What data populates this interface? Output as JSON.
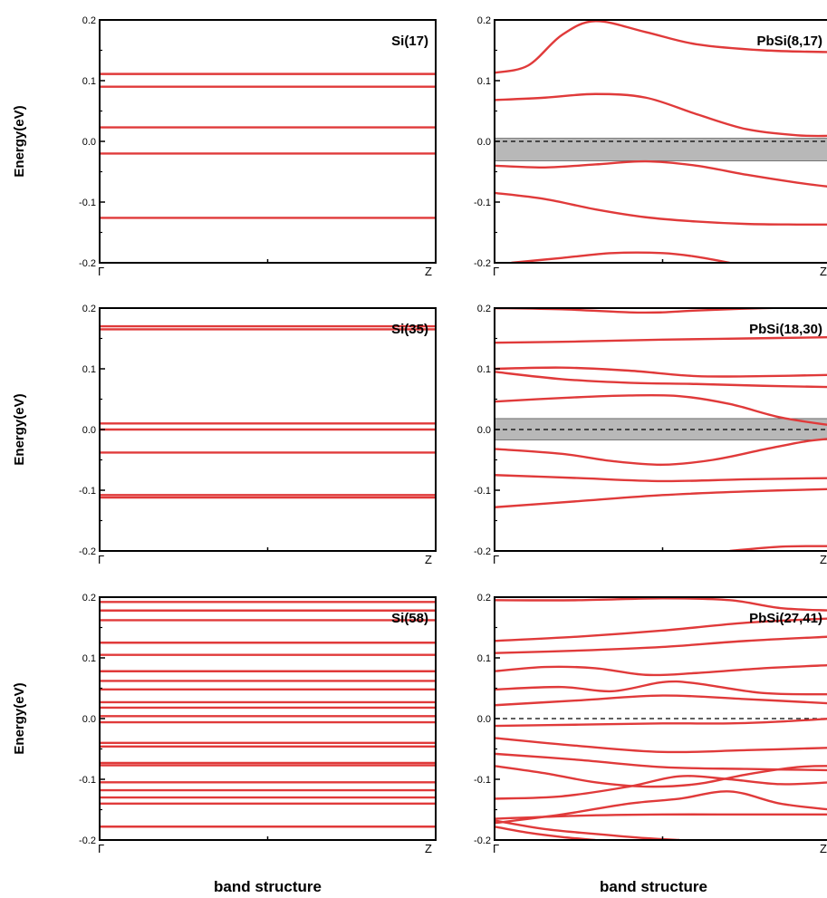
{
  "chart_data": [
    {
      "type": "line",
      "panel_label": "Si(17)",
      "ylabel": "Energy(eV)",
      "xlabel": "",
      "kpoint_labels": [
        "Γ",
        "Z"
      ],
      "xlim": [
        0,
        1
      ],
      "ylim": [
        -0.2,
        0.2
      ],
      "yticks": [
        "0.2",
        "0.1",
        "0.0",
        "-0.1",
        "-0.2"
      ],
      "fermi_dashed": false,
      "series": [
        {
          "x": [
            0,
            1
          ],
          "y": [
            0.111,
            0.111
          ]
        },
        {
          "x": [
            0,
            1
          ],
          "y": [
            0.09,
            0.09
          ]
        },
        {
          "x": [
            0,
            1
          ],
          "y": [
            0.023,
            0.023
          ]
        },
        {
          "x": [
            0,
            1
          ],
          "y": [
            -0.02,
            -0.02
          ]
        },
        {
          "x": [
            0,
            1
          ],
          "y": [
            -0.126,
            -0.126
          ]
        }
      ]
    },
    {
      "type": "line",
      "panel_label": "PbSi(8,17)",
      "ylabel": "",
      "xlabel": "",
      "kpoint_labels": [
        "Γ",
        "Z"
      ],
      "xlim": [
        0,
        1
      ],
      "ylim": [
        -0.2,
        0.2
      ],
      "yticks": [
        "0.2",
        "0.1",
        "0.0",
        "-0.1",
        "-0.2"
      ],
      "fermi_dashed": true,
      "gap_band": [
        -0.032,
        0.005
      ],
      "series": [
        {
          "x": [
            0,
            0.1,
            0.2,
            0.3,
            0.45,
            0.6,
            0.8,
            1.0
          ],
          "y": [
            0.113,
            0.125,
            0.175,
            0.198,
            0.18,
            0.16,
            0.15,
            0.147
          ]
        },
        {
          "x": [
            0,
            0.15,
            0.3,
            0.45,
            0.6,
            0.75,
            0.9,
            1.0
          ],
          "y": [
            0.068,
            0.072,
            0.078,
            0.072,
            0.045,
            0.02,
            0.01,
            0.009
          ]
        },
        {
          "x": [
            0,
            0.15,
            0.3,
            0.45,
            0.6,
            0.75,
            0.9,
            1.0
          ],
          "y": [
            -0.04,
            -0.043,
            -0.038,
            -0.033,
            -0.04,
            -0.055,
            -0.068,
            -0.075
          ]
        },
        {
          "x": [
            0,
            0.15,
            0.3,
            0.45,
            0.6,
            0.75,
            0.9,
            1.0
          ],
          "y": [
            -0.085,
            -0.095,
            -0.112,
            -0.125,
            -0.132,
            -0.136,
            -0.137,
            -0.137
          ]
        },
        {
          "x": [
            0.05,
            0.2,
            0.35,
            0.5,
            0.6,
            0.7
          ],
          "y": [
            -0.2,
            -0.192,
            -0.184,
            -0.184,
            -0.19,
            -0.2
          ]
        }
      ]
    },
    {
      "type": "line",
      "panel_label": "Si(35)",
      "ylabel": "Energy(eV)",
      "xlabel": "",
      "kpoint_labels": [
        "Γ",
        "Z"
      ],
      "xlim": [
        0,
        1
      ],
      "ylim": [
        -0.2,
        0.2
      ],
      "yticks": [
        "0.2",
        "0.1",
        "0.0",
        "-0.1",
        "-0.2"
      ],
      "fermi_dashed": false,
      "series": [
        {
          "x": [
            0,
            1
          ],
          "y": [
            0.17,
            0.17
          ]
        },
        {
          "x": [
            0,
            1
          ],
          "y": [
            0.165,
            0.165
          ]
        },
        {
          "x": [
            0,
            1
          ],
          "y": [
            0.01,
            0.01
          ]
        },
        {
          "x": [
            0,
            1
          ],
          "y": [
            0.0,
            0.0
          ]
        },
        {
          "x": [
            0,
            1
          ],
          "y": [
            -0.038,
            -0.038
          ]
        },
        {
          "x": [
            0,
            1
          ],
          "y": [
            -0.108,
            -0.108
          ]
        },
        {
          "x": [
            0,
            1
          ],
          "y": [
            -0.112,
            -0.112
          ]
        }
      ]
    },
    {
      "type": "line",
      "panel_label": "PbSi(18,30)",
      "ylabel": "",
      "xlabel": "",
      "kpoint_labels": [
        "Γ",
        "Z"
      ],
      "xlim": [
        0,
        1
      ],
      "ylim": [
        -0.2,
        0.2
      ],
      "yticks": [
        "0.2",
        "0.1",
        "0.0",
        "-0.1",
        "-0.2"
      ],
      "fermi_dashed": true,
      "gap_band": [
        -0.017,
        0.018
      ],
      "series": [
        {
          "x": [
            0,
            0.2,
            0.4,
            0.5,
            0.6,
            0.8,
            1.0
          ],
          "y": [
            0.2,
            0.198,
            0.193,
            0.193,
            0.196,
            0.2,
            0.202
          ]
        },
        {
          "x": [
            0,
            0.25,
            0.5,
            0.75,
            1.0
          ],
          "y": [
            0.143,
            0.145,
            0.148,
            0.15,
            0.152
          ]
        },
        {
          "x": [
            0,
            0.2,
            0.4,
            0.6,
            0.8,
            1.0
          ],
          "y": [
            0.1,
            0.102,
            0.097,
            0.088,
            0.088,
            0.09
          ]
        },
        {
          "x": [
            0,
            0.2,
            0.4,
            0.6,
            0.8,
            1.0
          ],
          "y": [
            0.095,
            0.083,
            0.077,
            0.075,
            0.072,
            0.07
          ]
        },
        {
          "x": [
            0,
            0.2,
            0.4,
            0.55,
            0.7,
            0.85,
            1.0
          ],
          "y": [
            0.046,
            0.052,
            0.056,
            0.055,
            0.042,
            0.02,
            0.007
          ]
        },
        {
          "x": [
            0,
            0.2,
            0.35,
            0.5,
            0.65,
            0.8,
            0.92,
            1.0
          ],
          "y": [
            -0.032,
            -0.04,
            -0.052,
            -0.058,
            -0.05,
            -0.033,
            -0.02,
            -0.015
          ]
        },
        {
          "x": [
            0,
            0.25,
            0.5,
            0.75,
            1.0
          ],
          "y": [
            -0.075,
            -0.08,
            -0.085,
            -0.082,
            -0.08
          ]
        },
        {
          "x": [
            0,
            0.25,
            0.5,
            0.75,
            1.0
          ],
          "y": [
            -0.128,
            -0.118,
            -0.108,
            -0.102,
            -0.098
          ]
        },
        {
          "x": [
            0.7,
            0.85,
            1.0
          ],
          "y": [
            -0.2,
            -0.193,
            -0.192
          ]
        }
      ]
    },
    {
      "type": "line",
      "panel_label": "Si(58)",
      "ylabel": "Energy(eV)",
      "xlabel": "band structure",
      "kpoint_labels": [
        "Γ",
        "Z"
      ],
      "xlim": [
        0,
        1
      ],
      "ylim": [
        -0.2,
        0.2
      ],
      "yticks": [
        "0.2",
        "0.1",
        "0.0",
        "-0.1",
        "-0.2"
      ],
      "fermi_dashed": false,
      "series": [
        {
          "x": [
            0,
            1
          ],
          "y": [
            0.192,
            0.192
          ]
        },
        {
          "x": [
            0,
            1
          ],
          "y": [
            0.178,
            0.178
          ]
        },
        {
          "x": [
            0,
            1
          ],
          "y": [
            0.162,
            0.162
          ]
        },
        {
          "x": [
            0,
            1
          ],
          "y": [
            0.125,
            0.125
          ]
        },
        {
          "x": [
            0,
            1
          ],
          "y": [
            0.105,
            0.105
          ]
        },
        {
          "x": [
            0,
            1
          ],
          "y": [
            0.078,
            0.078
          ]
        },
        {
          "x": [
            0,
            1
          ],
          "y": [
            0.062,
            0.062
          ]
        },
        {
          "x": [
            0,
            1
          ],
          "y": [
            0.048,
            0.048
          ]
        },
        {
          "x": [
            0,
            1
          ],
          "y": [
            0.027,
            0.027
          ]
        },
        {
          "x": [
            0,
            1
          ],
          "y": [
            0.018,
            0.018
          ]
        },
        {
          "x": [
            0,
            1
          ],
          "y": [
            0.004,
            0.004
          ]
        },
        {
          "x": [
            0,
            1
          ],
          "y": [
            -0.006,
            -0.006
          ]
        },
        {
          "x": [
            0,
            1
          ],
          "y": [
            -0.04,
            -0.04
          ]
        },
        {
          "x": [
            0,
            1
          ],
          "y": [
            -0.046,
            -0.046
          ]
        },
        {
          "x": [
            0,
            1
          ],
          "y": [
            -0.073,
            -0.073
          ]
        },
        {
          "x": [
            0,
            1
          ],
          "y": [
            -0.077,
            -0.077
          ]
        },
        {
          "x": [
            0,
            1
          ],
          "y": [
            -0.105,
            -0.105
          ]
        },
        {
          "x": [
            0,
            1
          ],
          "y": [
            -0.118,
            -0.118
          ]
        },
        {
          "x": [
            0,
            1
          ],
          "y": [
            -0.13,
            -0.13
          ]
        },
        {
          "x": [
            0,
            1
          ],
          "y": [
            -0.14,
            -0.14
          ]
        },
        {
          "x": [
            0,
            1
          ],
          "y": [
            -0.178,
            -0.178
          ]
        }
      ]
    },
    {
      "type": "line",
      "panel_label": "PbSi(27,41)",
      "ylabel": "",
      "xlabel": "band structure",
      "kpoint_labels": [
        "Γ",
        "Z"
      ],
      "xlim": [
        0,
        1
      ],
      "ylim": [
        -0.2,
        0.2
      ],
      "yticks": [
        "0.2",
        "0.1",
        "0.0",
        "-0.1",
        "-0.2"
      ],
      "fermi_dashed": true,
      "series": [
        {
          "x": [
            0,
            0.25,
            0.5,
            0.7,
            0.85,
            1.0
          ],
          "y": [
            0.195,
            0.195,
            0.198,
            0.195,
            0.182,
            0.178
          ]
        },
        {
          "x": [
            0,
            0.25,
            0.5,
            0.75,
            1.0
          ],
          "y": [
            0.128,
            0.135,
            0.145,
            0.158,
            0.165
          ]
        },
        {
          "x": [
            0,
            0.25,
            0.5,
            0.75,
            1.0
          ],
          "y": [
            0.108,
            0.112,
            0.118,
            0.128,
            0.135
          ]
        },
        {
          "x": [
            0,
            0.15,
            0.3,
            0.45,
            0.6,
            0.8,
            1.0
          ],
          "y": [
            0.078,
            0.085,
            0.083,
            0.072,
            0.075,
            0.083,
            0.088
          ]
        },
        {
          "x": [
            0,
            0.2,
            0.35,
            0.5,
            0.6,
            0.8,
            1.0
          ],
          "y": [
            0.048,
            0.052,
            0.045,
            0.06,
            0.058,
            0.042,
            0.04
          ]
        },
        {
          "x": [
            0,
            0.25,
            0.5,
            0.75,
            1.0
          ],
          "y": [
            0.022,
            0.03,
            0.038,
            0.032,
            0.025
          ]
        },
        {
          "x": [
            0,
            0.25,
            0.5,
            0.7,
            0.85,
            1.0
          ],
          "y": [
            -0.012,
            -0.01,
            -0.008,
            -0.008,
            -0.005,
            0.0
          ]
        },
        {
          "x": [
            0,
            0.25,
            0.5,
            0.75,
            1.0
          ],
          "y": [
            -0.032,
            -0.045,
            -0.055,
            -0.052,
            -0.048
          ]
        },
        {
          "x": [
            0,
            0.25,
            0.5,
            0.75,
            1.0
          ],
          "y": [
            -0.058,
            -0.068,
            -0.08,
            -0.083,
            -0.085
          ]
        },
        {
          "x": [
            0,
            0.15,
            0.3,
            0.45,
            0.6,
            0.75,
            0.9,
            1.0
          ],
          "y": [
            -0.078,
            -0.09,
            -0.105,
            -0.112,
            -0.108,
            -0.092,
            -0.08,
            -0.078
          ]
        },
        {
          "x": [
            0,
            0.2,
            0.4,
            0.55,
            0.7,
            0.85,
            1.0
          ],
          "y": [
            -0.132,
            -0.128,
            -0.112,
            -0.095,
            -0.1,
            -0.108,
            -0.105
          ]
        },
        {
          "x": [
            0,
            0.2,
            0.4,
            0.55,
            0.7,
            0.85,
            1.0
          ],
          "y": [
            -0.172,
            -0.158,
            -0.14,
            -0.132,
            -0.12,
            -0.14,
            -0.15
          ]
        },
        {
          "x": [
            0,
            0.25,
            0.5,
            0.75,
            1.0
          ],
          "y": [
            -0.165,
            -0.16,
            -0.158,
            -0.158,
            -0.158
          ]
        },
        {
          "x": [
            0,
            0.15,
            0.3,
            0.45,
            0.55
          ],
          "y": [
            -0.168,
            -0.182,
            -0.19,
            -0.197,
            -0.2
          ]
        },
        {
          "x": [
            0,
            0.1,
            0.2,
            0.3
          ],
          "y": [
            -0.178,
            -0.188,
            -0.195,
            -0.2
          ]
        }
      ]
    }
  ],
  "style": {
    "band_color": "#e03a3a",
    "frame_color": "#000000",
    "gap_fill": "#b8b8b8"
  }
}
